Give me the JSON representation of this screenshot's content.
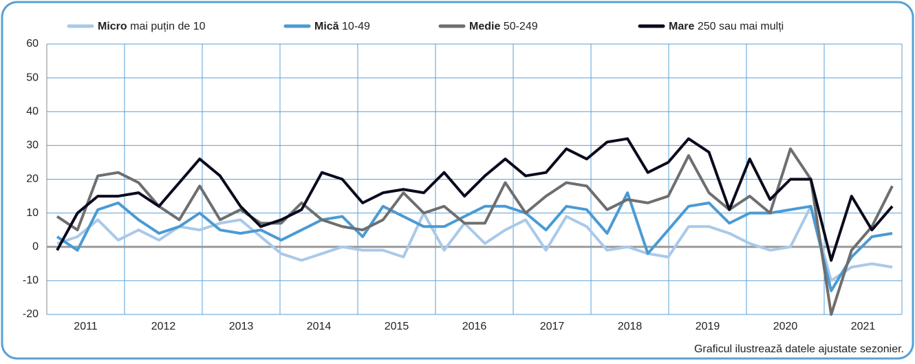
{
  "chart_data": {
    "type": "line",
    "x_axis_labels": [
      "2011",
      "2012",
      "2013",
      "2014",
      "2015",
      "2016",
      "2017",
      "2018",
      "2019",
      "2020",
      "2021"
    ],
    "series": [
      {
        "name": "Micro",
        "legend_detail": "mai puțin de 10",
        "color": "#a9c9e9",
        "values": [
          1,
          3,
          8,
          2,
          5,
          2,
          6,
          5,
          7,
          8,
          3,
          -2,
          -4,
          -2,
          0,
          -1,
          -1,
          -3,
          10,
          -1,
          7,
          1,
          5,
          8,
          -1,
          9,
          6,
          -1,
          0,
          -2,
          -3,
          6,
          6,
          4,
          1,
          -1,
          0,
          12,
          -10,
          -6,
          -5,
          -6
        ]
      },
      {
        "name": "Mică",
        "legend_detail": "10-49",
        "color": "#4a9ad4",
        "values": [
          3,
          -1,
          11,
          13,
          8,
          4,
          6,
          10,
          5,
          4,
          5,
          2,
          5,
          8,
          9,
          3,
          12,
          9,
          6,
          6,
          9,
          12,
          12,
          10,
          5,
          12,
          11,
          4,
          16,
          -2,
          5,
          12,
          13,
          7,
          10,
          10,
          11,
          12,
          -13,
          -3,
          3,
          4
        ]
      },
      {
        "name": "Medie",
        "legend_detail": "50-249",
        "color": "#6e6e6e",
        "values": [
          9,
          5,
          21,
          22,
          19,
          12,
          8,
          18,
          8,
          11,
          7,
          7,
          13,
          8,
          6,
          5,
          8,
          16,
          10,
          12,
          7,
          7,
          19,
          10,
          15,
          19,
          18,
          11,
          14,
          13,
          15,
          27,
          16,
          11,
          15,
          10,
          29,
          20,
          -20,
          -1,
          6,
          18
        ]
      },
      {
        "name": "Mare",
        "legend_detail": "250 sau mai mulți",
        "color": "#0a0a1e",
        "values": [
          -1,
          10,
          15,
          15,
          16,
          12,
          19,
          26,
          21,
          12,
          6,
          8,
          11,
          22,
          20,
          13,
          16,
          17,
          16,
          22,
          15,
          21,
          26,
          21,
          22,
          29,
          26,
          31,
          32,
          22,
          25,
          32,
          28,
          11,
          26,
          14,
          20,
          20,
          -4,
          15,
          5,
          12
        ]
      }
    ],
    "ylim": [
      -20,
      60
    ],
    "yticks": [
      -20,
      -10,
      0,
      10,
      20,
      30,
      40,
      50,
      60
    ],
    "grid": true,
    "note": "Graficul ilustrează datele ajustate sezonier."
  }
}
